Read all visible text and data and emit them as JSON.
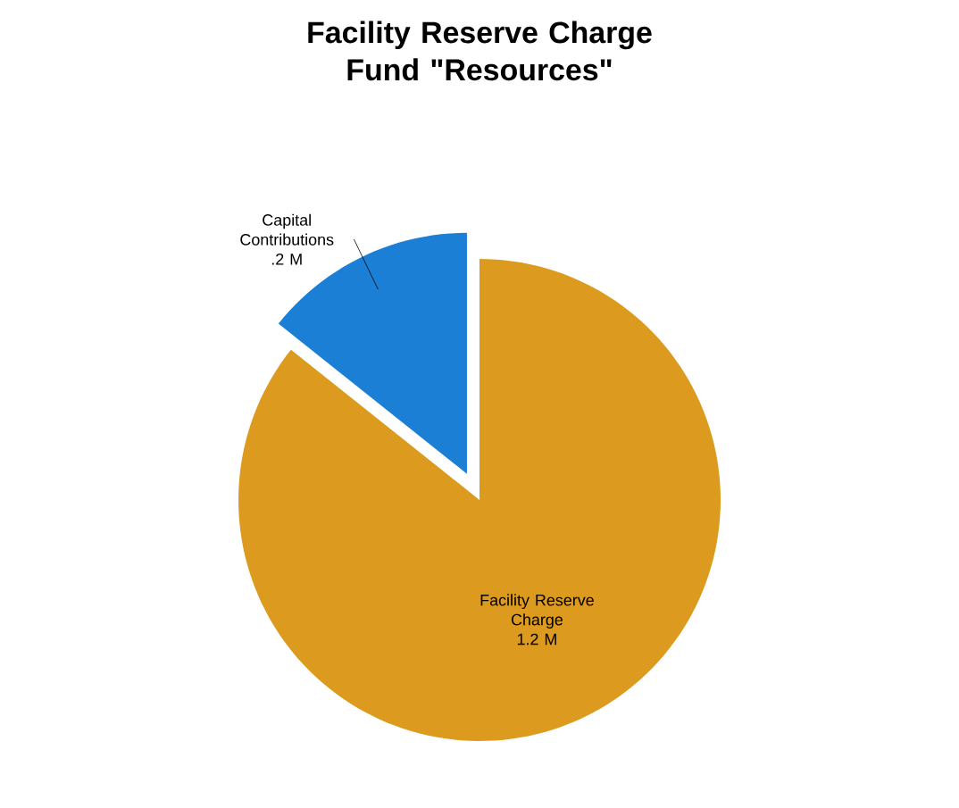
{
  "chart_data": {
    "type": "pie",
    "title": "Facility Reserve Charge Fund \"Resources\"",
    "categories": [
      "Capital Contributions",
      "Facility Reserve Charge"
    ],
    "values": [
      0.2,
      1.2
    ],
    "colors": [
      "#1b7fd6",
      "#dc9a1e"
    ],
    "value_labels": [
      ".2 M",
      "1.2 M"
    ]
  }
}
